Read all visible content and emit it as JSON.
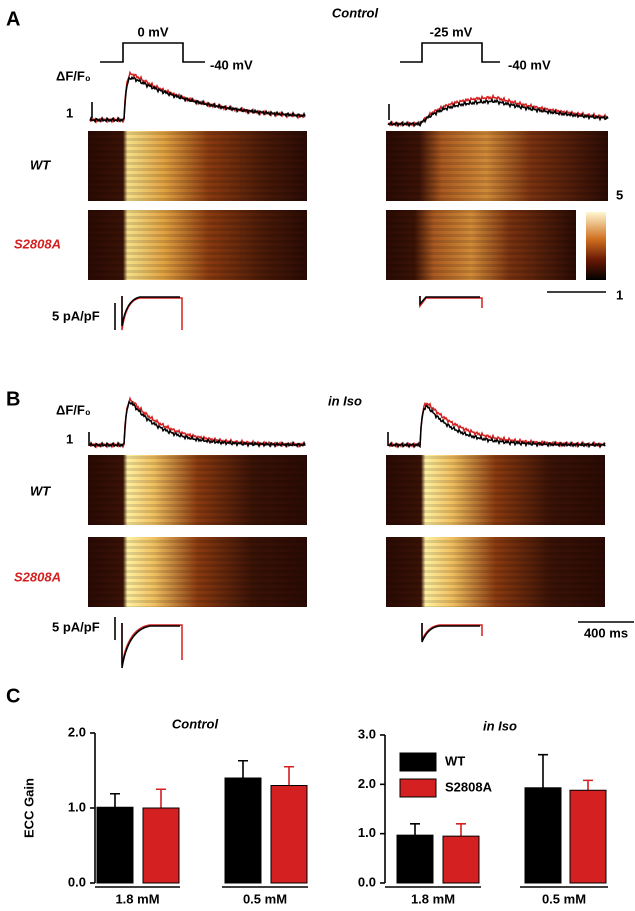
{
  "panel_a": {
    "label": "A",
    "title": "Control",
    "step_left": "0 mV",
    "hold_left": "-40 mV",
    "step_right": "-25 mV",
    "hold_right": "-40 mV",
    "fluor_label": "ΔF/F₀",
    "fluor_scale": "1",
    "row_wt": "WT",
    "row_mutant": "S2808A",
    "colorbar_max": "5",
    "colorbar_min": "1",
    "current_scale": "5 pA/pF"
  },
  "panel_b": {
    "label": "B",
    "title": "in Iso",
    "fluor_label": "ΔF/F₀",
    "fluor_scale": "1",
    "row_wt": "WT",
    "row_mutant": "S2808A",
    "current_scale": "5 pA/pF",
    "time_scale": "400 ms"
  },
  "panel_c": {
    "label": "C"
  },
  "chart_data": [
    {
      "type": "bar",
      "title": "Control",
      "ylabel": "ECC Gain",
      "categories": [
        "1.8 mM",
        "0.5 mM"
      ],
      "series": [
        {
          "color": "#000000",
          "values": [
            1.01,
            1.4
          ],
          "errors": [
            0.18,
            0.23
          ]
        },
        {
          "color": "#d42020",
          "values": [
            1.0,
            1.3
          ],
          "errors": [
            0.25,
            0.25
          ]
        }
      ],
      "ylim": [
        0,
        2
      ],
      "yticks": [
        {
          "value": 0,
          "label": "0.0"
        },
        {
          "value": 1,
          "label": "1.0"
        },
        {
          "value": 2,
          "label": "2.0"
        }
      ],
      "legend": false
    },
    {
      "type": "bar",
      "title": "in Iso",
      "categories": [
        "1.8 mM",
        "0.5 mM"
      ],
      "series": [
        {
          "name": "WT",
          "color": "#000000",
          "values": [
            0.97,
            1.93
          ],
          "errors": [
            0.23,
            0.67
          ]
        },
        {
          "name": "S2808A",
          "color": "#d42020",
          "values": [
            0.95,
            1.88
          ],
          "errors": [
            0.25,
            0.2
          ]
        }
      ],
      "ylim": [
        0,
        3
      ],
      "yticks": [
        {
          "value": 0,
          "label": "0.0"
        },
        {
          "value": 1,
          "label": "1.0"
        },
        {
          "value": 2,
          "label": "2.0"
        },
        {
          "value": 3,
          "label": "3.0"
        }
      ],
      "legend": true
    }
  ]
}
